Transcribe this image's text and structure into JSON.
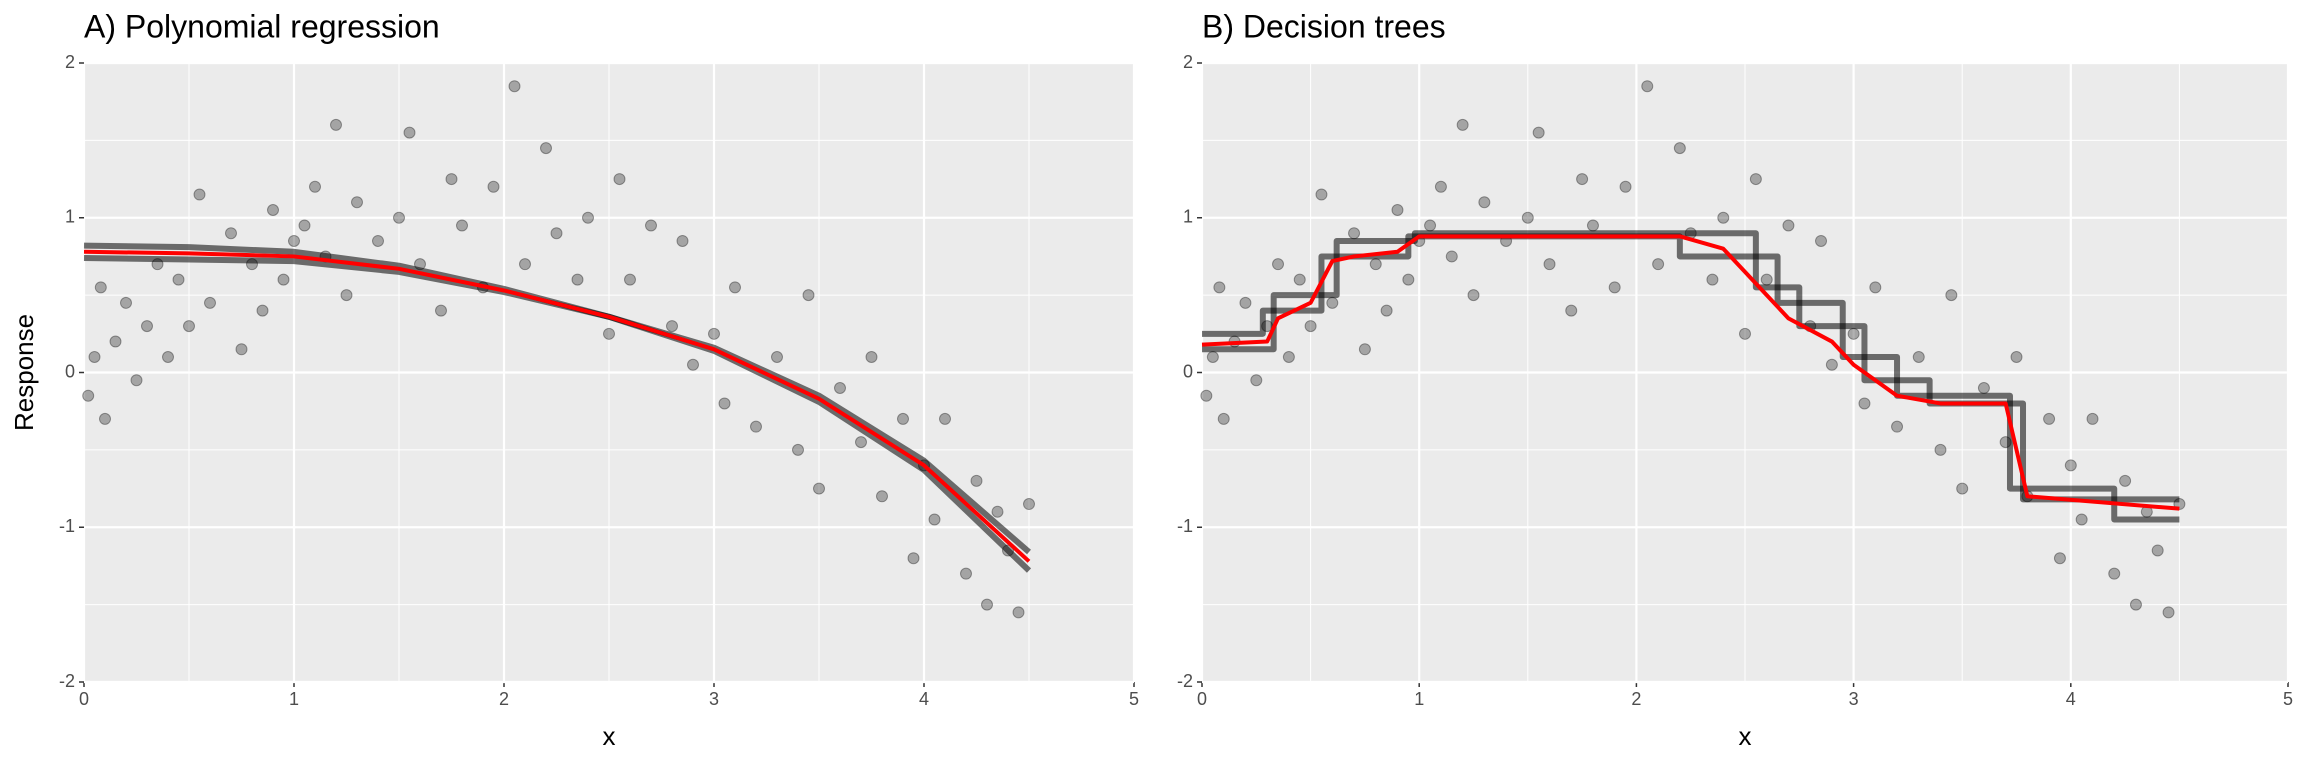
{
  "chart_data": [
    {
      "type": "scatter",
      "title": "A) Polynomial regression",
      "x_label": "x",
      "y_label": "Response",
      "xlim": [
        0,
        5
      ],
      "ylim": [
        -2,
        2
      ],
      "xticks": [
        0,
        1,
        2,
        3,
        4,
        5
      ],
      "yticks": [
        -2,
        -1,
        0,
        1,
        2
      ],
      "grid": true,
      "series": [
        {
          "mode": "markers",
          "color": "#000000",
          "x": [
            0.02,
            0.05,
            0.08,
            0.1,
            0.15,
            0.2,
            0.25,
            0.3,
            0.35,
            0.4,
            0.45,
            0.5,
            0.55,
            0.6,
            0.7,
            0.75,
            0.8,
            0.85,
            0.9,
            0.95,
            1.0,
            1.05,
            1.1,
            1.15,
            1.2,
            1.25,
            1.3,
            1.4,
            1.5,
            1.55,
            1.6,
            1.7,
            1.75,
            1.8,
            1.9,
            1.95,
            2.05,
            2.1,
            2.2,
            2.25,
            2.35,
            2.4,
            2.5,
            2.55,
            2.6,
            2.7,
            2.8,
            2.85,
            2.9,
            3.0,
            3.05,
            3.1,
            3.2,
            3.3,
            3.4,
            3.45,
            3.5,
            3.6,
            3.7,
            3.75,
            3.8,
            3.9,
            3.95,
            4.0,
            4.05,
            4.1,
            4.2,
            4.25,
            4.3,
            4.35,
            4.4,
            4.45,
            4.5
          ],
          "values": [
            -0.15,
            0.1,
            0.55,
            -0.3,
            0.2,
            0.45,
            -0.05,
            0.3,
            0.7,
            0.1,
            0.6,
            0.3,
            1.15,
            0.45,
            0.9,
            0.15,
            0.7,
            0.4,
            1.05,
            0.6,
            0.85,
            0.95,
            1.2,
            0.75,
            1.6,
            0.5,
            1.1,
            0.85,
            1.0,
            1.55,
            0.7,
            0.4,
            1.25,
            0.95,
            0.55,
            1.2,
            1.85,
            0.7,
            1.45,
            0.9,
            0.6,
            1.0,
            0.25,
            1.25,
            0.6,
            0.95,
            0.3,
            0.85,
            0.05,
            0.25,
            -0.2,
            0.55,
            -0.35,
            0.1,
            -0.5,
            0.5,
            -0.75,
            -0.1,
            -0.45,
            0.1,
            -0.8,
            -0.3,
            -1.2,
            -0.6,
            -0.95,
            -0.3,
            -1.3,
            -0.7,
            -1.5,
            -0.9,
            -1.15,
            -1.55,
            -0.85
          ]
        },
        {
          "mode": "lines",
          "color": "#000000",
          "x": [
            0,
            0.5,
            1,
            1.5,
            2,
            2.5,
            3,
            3.5,
            4,
            4.5
          ],
          "values": [
            0.82,
            0.81,
            0.78,
            0.69,
            0.54,
            0.36,
            0.14,
            -0.19,
            -0.63,
            -1.28
          ]
        },
        {
          "mode": "lines",
          "color": "#000000",
          "x": [
            0,
            0.5,
            1,
            1.5,
            2,
            2.5,
            3,
            3.5,
            4,
            4.5
          ],
          "values": [
            0.74,
            0.73,
            0.72,
            0.65,
            0.52,
            0.36,
            0.16,
            -0.15,
            -0.57,
            -1.16
          ]
        },
        {
          "mode": "lines",
          "color": "#ff0000",
          "x": [
            0,
            0.5,
            1,
            1.5,
            2,
            2.5,
            3,
            3.5,
            4,
            4.5
          ],
          "values": [
            0.78,
            0.77,
            0.75,
            0.67,
            0.53,
            0.36,
            0.15,
            -0.17,
            -0.6,
            -1.22
          ]
        }
      ]
    },
    {
      "type": "scatter",
      "title": "B) Decision trees",
      "x_label": "x",
      "xlim": [
        0,
        5
      ],
      "ylim": [
        -2,
        2
      ],
      "xticks": [
        0,
        1,
        2,
        3,
        4,
        5
      ],
      "yticks": [
        -2,
        -1,
        0,
        1,
        2
      ],
      "grid": true,
      "series": [
        {
          "mode": "markers",
          "color": "#000000",
          "x": [
            0.02,
            0.05,
            0.08,
            0.1,
            0.15,
            0.2,
            0.25,
            0.3,
            0.35,
            0.4,
            0.45,
            0.5,
            0.55,
            0.6,
            0.7,
            0.75,
            0.8,
            0.85,
            0.9,
            0.95,
            1.0,
            1.05,
            1.1,
            1.15,
            1.2,
            1.25,
            1.3,
            1.4,
            1.5,
            1.55,
            1.6,
            1.7,
            1.75,
            1.8,
            1.9,
            1.95,
            2.05,
            2.1,
            2.2,
            2.25,
            2.35,
            2.4,
            2.5,
            2.55,
            2.6,
            2.7,
            2.8,
            2.85,
            2.9,
            3.0,
            3.05,
            3.1,
            3.2,
            3.3,
            3.4,
            3.45,
            3.5,
            3.6,
            3.7,
            3.75,
            3.8,
            3.9,
            3.95,
            4.0,
            4.05,
            4.1,
            4.2,
            4.25,
            4.3,
            4.35,
            4.4,
            4.45,
            4.5
          ],
          "values": [
            -0.15,
            0.1,
            0.55,
            -0.3,
            0.2,
            0.45,
            -0.05,
            0.3,
            0.7,
            0.1,
            0.6,
            0.3,
            1.15,
            0.45,
            0.9,
            0.15,
            0.7,
            0.4,
            1.05,
            0.6,
            0.85,
            0.95,
            1.2,
            0.75,
            1.6,
            0.5,
            1.1,
            0.85,
            1.0,
            1.55,
            0.7,
            0.4,
            1.25,
            0.95,
            0.55,
            1.2,
            1.85,
            0.7,
            1.45,
            0.9,
            0.6,
            1.0,
            0.25,
            1.25,
            0.6,
            0.95,
            0.3,
            0.85,
            0.05,
            0.25,
            -0.2,
            0.55,
            -0.35,
            0.1,
            -0.5,
            0.5,
            -0.75,
            -0.1,
            -0.45,
            0.1,
            -0.8,
            -0.3,
            -1.2,
            -0.6,
            -0.95,
            -0.3,
            -1.3,
            -0.7,
            -1.5,
            -0.9,
            -1.15,
            -1.55,
            -0.85
          ]
        },
        {
          "mode": "lines",
          "color": "#000000",
          "x": [
            0,
            0.33,
            0.33,
            0.62,
            0.62,
            0.98,
            0.98,
            2.55,
            2.55,
            2.75,
            2.75,
            3.05,
            3.05,
            3.35,
            3.35,
            3.78,
            3.78,
            4.5
          ],
          "values": [
            0.15,
            0.15,
            0.5,
            0.5,
            0.85,
            0.85,
            0.9,
            0.9,
            0.55,
            0.55,
            0.3,
            0.3,
            -0.05,
            -0.05,
            -0.2,
            -0.2,
            -0.82,
            -0.82
          ]
        },
        {
          "mode": "lines",
          "color": "#000000",
          "x": [
            0,
            0.28,
            0.28,
            0.55,
            0.55,
            0.95,
            0.95,
            2.2,
            2.2,
            2.65,
            2.65,
            2.95,
            2.95,
            3.2,
            3.2,
            3.72,
            3.72,
            4.2,
            4.2,
            4.5
          ],
          "values": [
            0.25,
            0.25,
            0.4,
            0.4,
            0.75,
            0.75,
            0.88,
            0.88,
            0.75,
            0.75,
            0.45,
            0.45,
            0.1,
            0.1,
            -0.15,
            -0.15,
            -0.75,
            -0.75,
            -0.95,
            -0.95
          ]
        },
        {
          "mode": "lines",
          "color": "#ff0000",
          "x": [
            0,
            0.3,
            0.35,
            0.5,
            0.6,
            0.7,
            0.9,
            1.0,
            2.2,
            2.4,
            2.5,
            2.6,
            2.7,
            2.9,
            3.0,
            3.2,
            3.4,
            3.7,
            3.8,
            4.5
          ],
          "values": [
            0.18,
            0.2,
            0.35,
            0.45,
            0.72,
            0.75,
            0.78,
            0.88,
            0.88,
            0.8,
            0.65,
            0.5,
            0.35,
            0.2,
            0.05,
            -0.15,
            -0.2,
            -0.2,
            -0.8,
            -0.88
          ]
        }
      ]
    }
  ]
}
